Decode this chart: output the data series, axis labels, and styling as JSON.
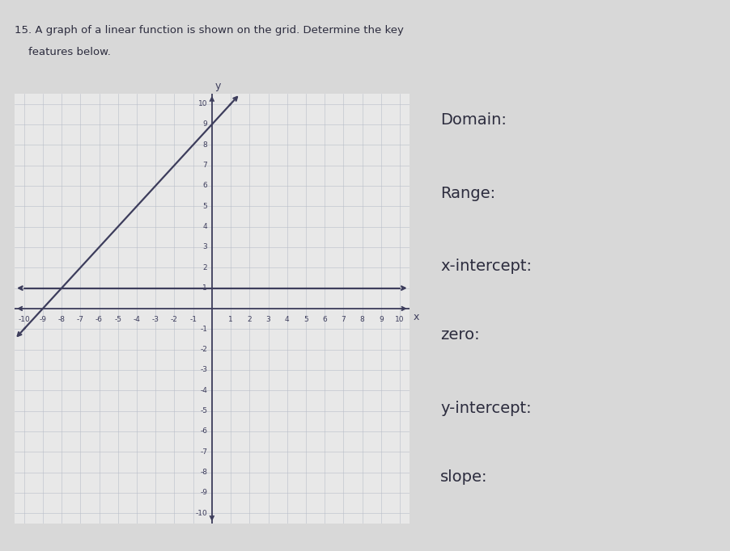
{
  "xlim": [
    -10.5,
    10.5
  ],
  "ylim": [
    -10.5,
    10.5
  ],
  "line_color": "#3d3d5c",
  "line_width": 1.6,
  "grid_color": "#b8bec8",
  "axis_color": "#3d3d5c",
  "background_color": "#e8e8e8",
  "paper_color": "#d8d8d8",
  "diagonal_x1": -10,
  "diagonal_y1": -1,
  "diagonal_x2": 1,
  "diagonal_y2": 10,
  "horiz_line_y": 1,
  "horiz_x1": -10,
  "horiz_x2": 10,
  "right_labels": [
    "Domain:",
    "Range:",
    "x-intercept:",
    "zero:",
    "y-intercept:",
    "slope:"
  ],
  "label_fontsize": 14,
  "tick_fontsize": 6.5,
  "axis_label_x": "x",
  "axis_label_y": "y",
  "title_line1": "15. A graph of a linear function is shown on the grid. Determine the key",
  "title_line2": "    features below.",
  "header_text": "15. A graph of a linear function is shown on the grid. Determine the key"
}
